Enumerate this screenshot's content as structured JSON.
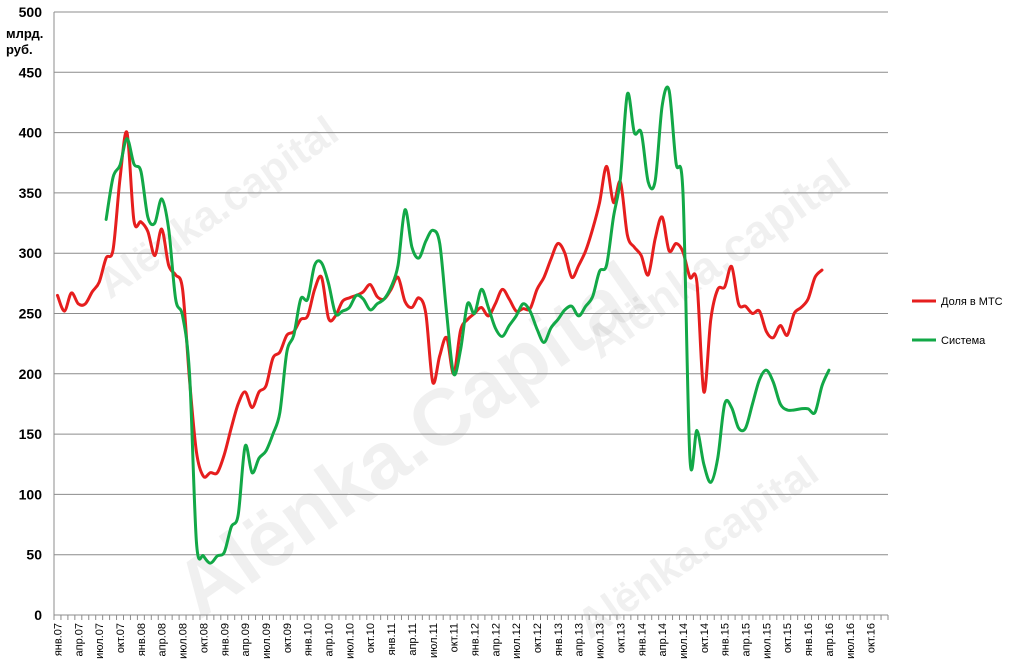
{
  "chart_data": {
    "type": "line",
    "ylabel_lines": [
      "млрд.",
      "руб."
    ],
    "ylim": [
      0,
      500
    ],
    "yticks": [
      0,
      50,
      100,
      150,
      200,
      250,
      300,
      350,
      400,
      450,
      500
    ],
    "grid": true,
    "legend_position": "right",
    "x_tick_labels": [
      "янв.07",
      "апр.07",
      "июл.07",
      "окт.07",
      "янв.08",
      "апр.08",
      "июл.08",
      "окт.08",
      "янв.09",
      "апр.09",
      "июл.09",
      "окт.09",
      "янв.10",
      "апр.10",
      "июл.10",
      "окт.10",
      "янв.11",
      "апр.11",
      "июл.11",
      "окт.11",
      "янв.12",
      "апр.12",
      "июл.12",
      "окт.12",
      "янв.13",
      "апр.13",
      "июл.13",
      "окт.13",
      "янв.14",
      "апр.14",
      "июл.14",
      "окт.14",
      "янв.15",
      "апр.15",
      "июл.15",
      "окт.15",
      "янв.16",
      "апр.16",
      "июл.16",
      "окт.16"
    ],
    "series": [
      {
        "name": "Доля в МТС",
        "color": "#e61e1e",
        "start_month_index": 0,
        "values": [
          265,
          252,
          267,
          258,
          258,
          268,
          276,
          296,
          303,
          362,
          400,
          327,
          326,
          318,
          298,
          320,
          290,
          282,
          270,
          195,
          135,
          115,
          118,
          118,
          133,
          155,
          175,
          185,
          172,
          185,
          190,
          213,
          218,
          232,
          235,
          245,
          248,
          270,
          280,
          246,
          248,
          260,
          263,
          265,
          268,
          274,
          264,
          262,
          270,
          280,
          260,
          255,
          263,
          250,
          193,
          215,
          230,
          200,
          236,
          245,
          250,
          255,
          248,
          258,
          270,
          262,
          252,
          254,
          254,
          270,
          280,
          295,
          308,
          300,
          280,
          290,
          302,
          320,
          342,
          372,
          342,
          359,
          315,
          305,
          298,
          282,
          312,
          330,
          302,
          308,
          301,
          280,
          276,
          185,
          245,
          270,
          272,
          289,
          258,
          256,
          250,
          252,
          235,
          230,
          240,
          232,
          250,
          255,
          262,
          280,
          286
        ]
      },
      {
        "name": "Система",
        "color": "#12a847",
        "start_month_index": 7,
        "values": [
          328,
          363,
          373,
          395,
          374,
          368,
          330,
          325,
          345,
          320,
          262,
          248,
          200,
          60,
          49,
          43,
          49,
          52,
          73,
          83,
          140,
          118,
          130,
          136,
          150,
          168,
          218,
          232,
          262,
          262,
          290,
          292,
          275,
          250,
          252,
          255,
          265,
          262,
          253,
          258,
          262,
          272,
          290,
          336,
          305,
          296,
          310,
          319,
          308,
          250,
          200,
          220,
          258,
          250,
          270,
          255,
          238,
          231,
          240,
          248,
          258,
          252,
          237,
          226,
          238,
          245,
          253,
          256,
          248,
          256,
          264,
          285,
          290,
          330,
          362,
          432,
          400,
          400,
          359,
          360,
          422,
          435,
          375,
          350,
          130,
          153,
          125,
          110,
          130,
          175,
          172,
          155,
          155,
          175,
          195,
          203,
          193,
          175,
          170,
          170,
          171,
          171,
          168,
          190,
          203
        ]
      }
    ]
  },
  "watermarks": [
    "Alënka.capital",
    "Alënka.capital",
    "Alënka.capital",
    "Alënka.Capital"
  ]
}
